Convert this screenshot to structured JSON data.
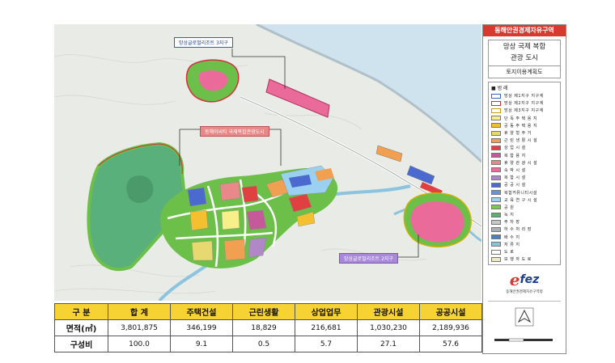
{
  "callouts": {
    "resort3": "망상글로벌리조트 3지구",
    "city": "동해이씨티 국제복합관광도시",
    "resort2": "망상글로벌리조트 2지구"
  },
  "panel": {
    "title": "동해안권경제자유구역",
    "name_line1": "망상 국제 복합",
    "name_line2": "관광 도시",
    "subtitle": "토지이용계획도",
    "legend_title": "■ 범 례",
    "legend": [
      {
        "label": "망상 제1지구 지구계",
        "color": "#ffffff",
        "line": "#4060c0"
      },
      {
        "label": "망상 제2지구 지구계",
        "color": "#ffffff",
        "line": "#d03030"
      },
      {
        "label": "망상 제3지구 지구계",
        "color": "#ffffff",
        "line": "#c0a000"
      },
      {
        "label": "단 독 주 택 용 지",
        "color": "#f6ef8a"
      },
      {
        "label": "공 동 주 택 용 지",
        "color": "#f4c030"
      },
      {
        "label": "휴 양 형 주 거",
        "color": "#e8d870"
      },
      {
        "label": "근 린 생 활 시 설",
        "color": "#f0a050"
      },
      {
        "label": "상 업 시 설",
        "color": "#e04040"
      },
      {
        "label": "복 합 용 지",
        "color": "#c45a9a"
      },
      {
        "label": "휴 양 관 광 시 설",
        "color": "#e88888"
      },
      {
        "label": "숙 박 시 설",
        "color": "#ea6a9a"
      },
      {
        "label": "복 합 시 설",
        "color": "#b088c8"
      },
      {
        "label": "공 공 시 설",
        "color": "#4a6ad0"
      },
      {
        "label": "복합커뮤니티시설",
        "color": "#6a90e0"
      },
      {
        "label": "교 육 연 구 시 설",
        "color": "#9ad0f0"
      },
      {
        "label": "공 원",
        "color": "#7ac850"
      },
      {
        "label": "녹 지",
        "color": "#5ab070"
      },
      {
        "label": "주 차 장",
        "color": "#c8c8c8"
      },
      {
        "label": "하 수 처 리 장",
        "color": "#a8b0b8"
      },
      {
        "label": "배 수 지",
        "color": "#4a80c0"
      },
      {
        "label": "저 류 지",
        "color": "#80c8d8"
      },
      {
        "label": "도 로",
        "color": "#ffffff"
      },
      {
        "label": "보 행 자 도 로",
        "color": "#f0e8c0"
      }
    ],
    "logo_text": "fez",
    "logo_sub": "동해안권경제자유구역청"
  },
  "table": {
    "headers": [
      "구 분",
      "합 계",
      "주택건설",
      "근린생활",
      "상업업무",
      "관광시설",
      "공공시설"
    ],
    "rows": [
      {
        "label": "면적(㎡)",
        "values": [
          "3,801,875",
          "346,199",
          "18,829",
          "216,681",
          "1,030,230",
          "2,189,936"
        ]
      },
      {
        "label": "구성비",
        "values": [
          "100.0",
          "9.1",
          "0.5",
          "5.7",
          "27.1",
          "57.6"
        ]
      }
    ]
  },
  "colors": {
    "header_bg": "#f7d233",
    "panel_title_bg": "#d63a2e",
    "sea": "#cfe3ef",
    "green": "#6cc04a",
    "forest": "#5ab07a"
  }
}
